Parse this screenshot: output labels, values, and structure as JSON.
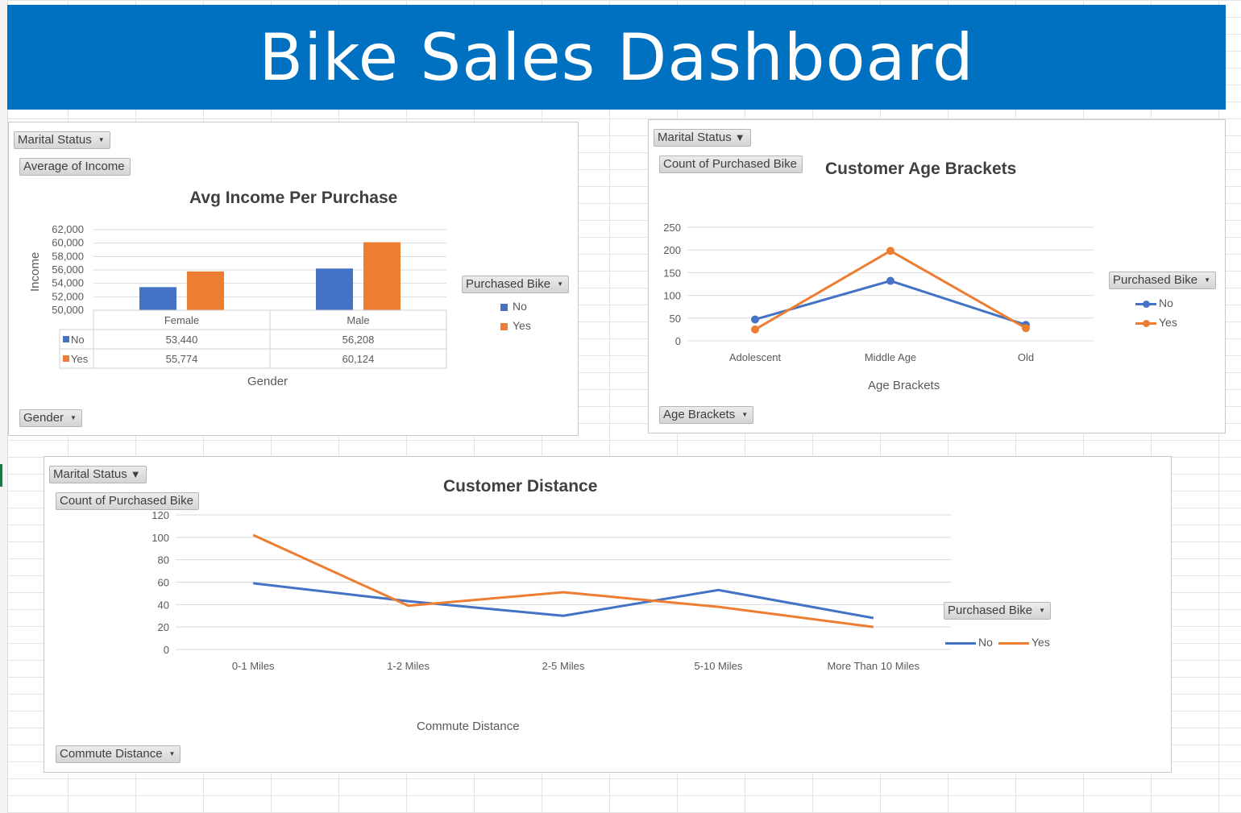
{
  "title": "Bike Sales Dashboard",
  "colors": {
    "banner": "#0070c0",
    "no": "#4472c4",
    "yes": "#ed7d31"
  },
  "income_panel": {
    "filter_marital": "Marital Status",
    "value_field": "Average of Income",
    "legend_title": "Purchased Bike",
    "axis_field": "Gender"
  },
  "age_panel": {
    "filter_marital": "Marital Status",
    "value_field": "Count of Purchased Bike",
    "legend_title": "Purchased Bike",
    "axis_field": "Age Brackets"
  },
  "distance_panel": {
    "filter_marital": "Marital Status",
    "value_field": "Count of Purchased Bike",
    "legend_title": "Purchased Bike",
    "axis_field": "Commute Distance"
  },
  "chart_data": [
    {
      "type": "bar",
      "title": "Avg Income Per Purchase",
      "xlabel": "Gender",
      "ylabel": "Income",
      "ylim": [
        50000,
        62000
      ],
      "yticks": [
        "62,000",
        "60,000",
        "58,000",
        "56,000",
        "54,000",
        "52,000",
        "50,000"
      ],
      "categories": [
        "Female",
        "Male"
      ],
      "series": [
        {
          "name": "No",
          "values": [
            53440,
            56208
          ],
          "labels": [
            "53,440",
            "56,208"
          ]
        },
        {
          "name": "Yes",
          "values": [
            55774,
            60124
          ],
          "labels": [
            "55,774",
            "60,124"
          ]
        }
      ],
      "legend": "right",
      "data_table": true
    },
    {
      "type": "line",
      "title": "Customer Age Brackets",
      "xlabel": "Age Brackets",
      "ylabel": "",
      "ylim": [
        0,
        250
      ],
      "yticks": [
        "250",
        "200",
        "150",
        "100",
        "50",
        "0"
      ],
      "categories": [
        "Adolescent",
        "Middle Age",
        "Old"
      ],
      "series": [
        {
          "name": "No",
          "values": [
            47,
            132,
            35
          ]
        },
        {
          "name": "Yes",
          "values": [
            25,
            198,
            28
          ]
        }
      ],
      "markers": true,
      "legend": "right"
    },
    {
      "type": "line",
      "title": "Customer Distance",
      "xlabel": "Commute Distance",
      "ylabel": "",
      "ylim": [
        0,
        120
      ],
      "yticks": [
        "120",
        "100",
        "80",
        "60",
        "40",
        "20",
        "0"
      ],
      "categories": [
        "0-1 Miles",
        "1-2 Miles",
        "2-5 Miles",
        "5-10 Miles",
        "More Than 10 Miles"
      ],
      "series": [
        {
          "name": "No",
          "values": [
            59,
            43,
            30,
            53,
            28
          ]
        },
        {
          "name": "Yes",
          "values": [
            102,
            39,
            51,
            38,
            20
          ]
        }
      ],
      "markers": false,
      "legend": "right"
    }
  ]
}
